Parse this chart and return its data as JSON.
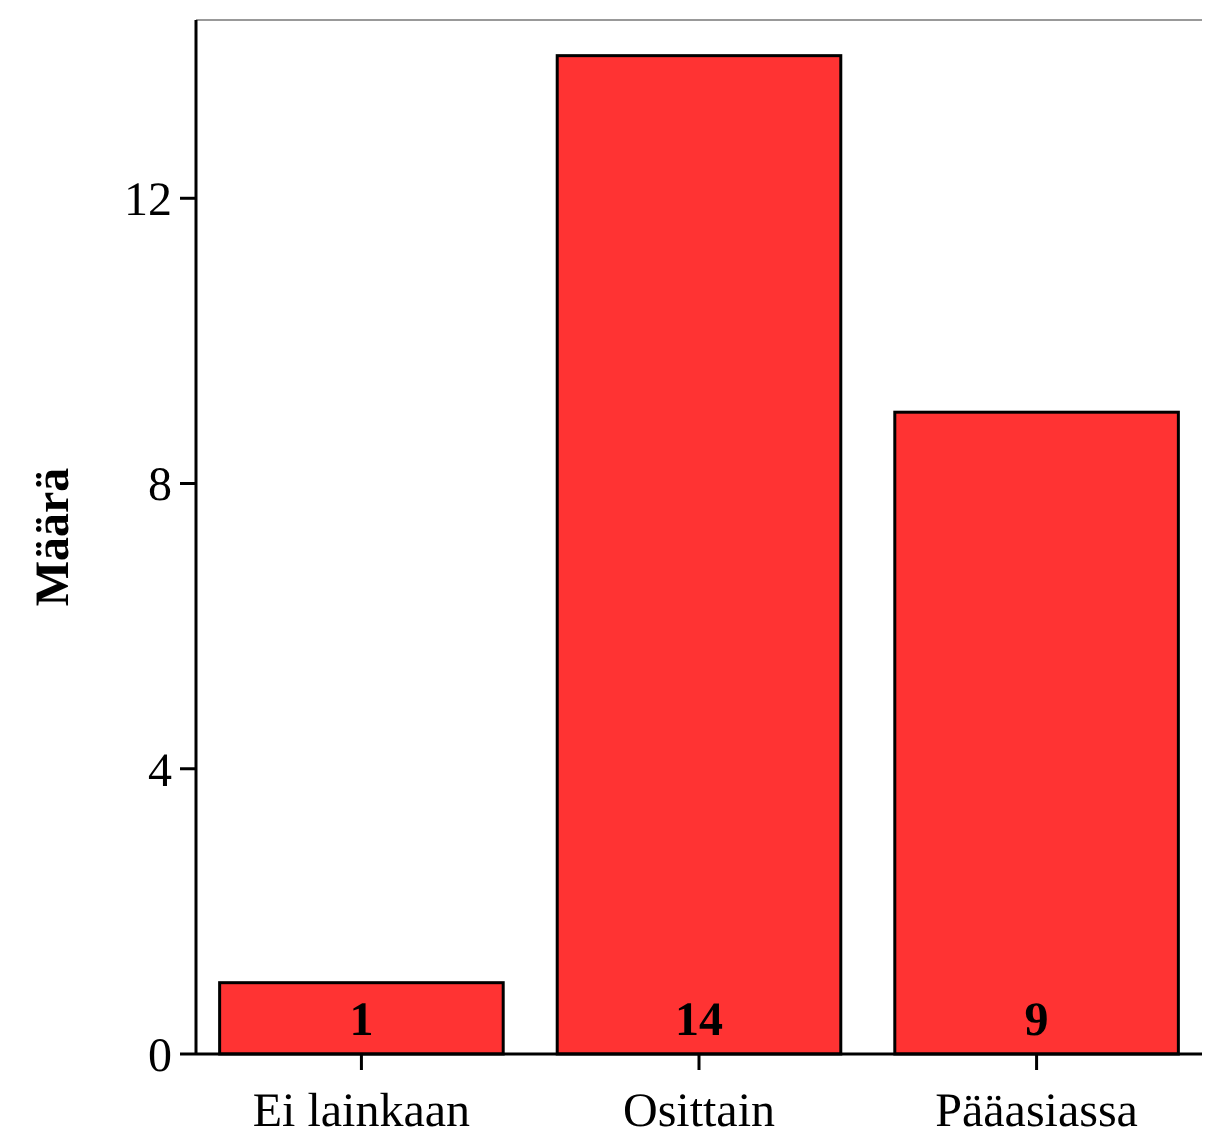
{
  "chart_data": {
    "type": "bar",
    "ylabel": "Määrä",
    "categories": [
      "Ei lainkaan",
      "Osittain",
      "Pääasiassa"
    ],
    "values": [
      1,
      14,
      9
    ],
    "color": "#ff3333",
    "ylim": [
      0,
      14.5
    ],
    "yticks": [
      0,
      4,
      8,
      12
    ],
    "data_labels": true,
    "grid": false
  }
}
